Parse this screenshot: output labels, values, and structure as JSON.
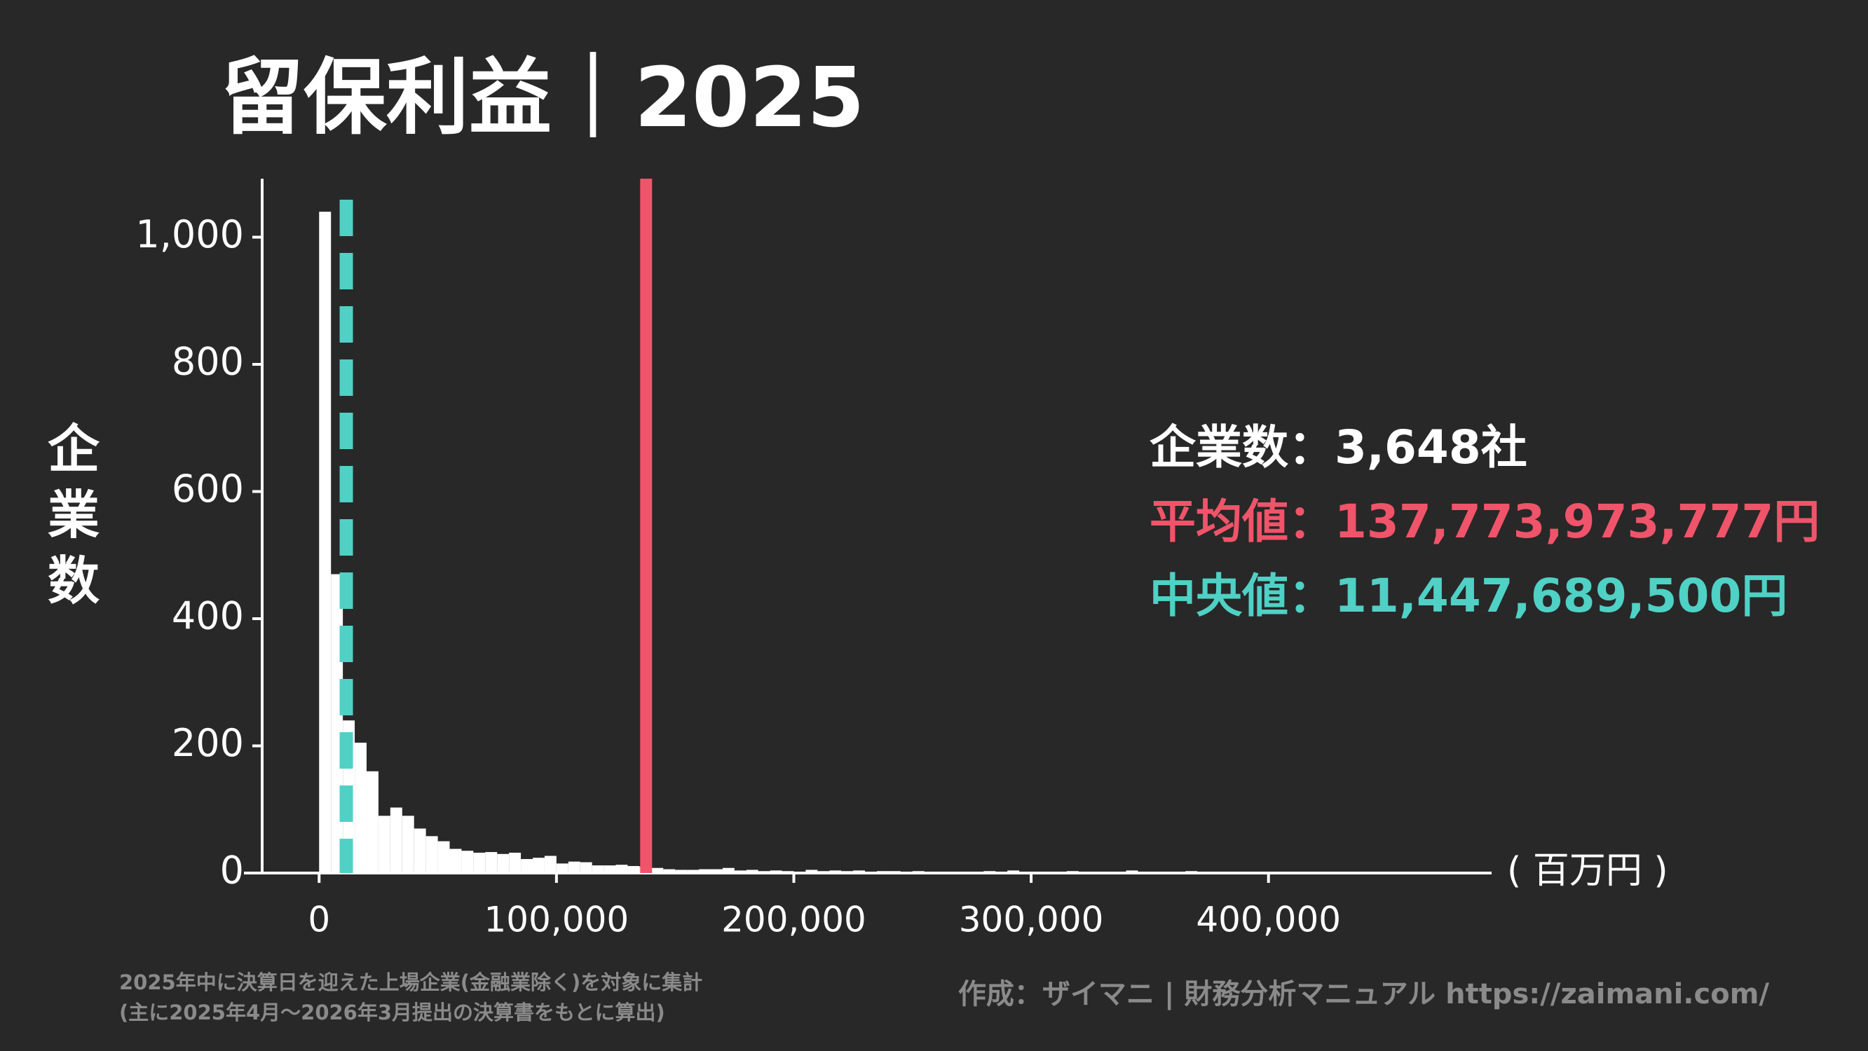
{
  "chart_data": {
    "type": "histogram",
    "title": "留保利益｜2025",
    "y_label": "企業数",
    "x_unit": "( 百万円 )",
    "bins": [
      0,
      5000,
      10000,
      15000,
      20000,
      25000,
      30000,
      35000,
      40000,
      45000,
      50000,
      55000,
      60000,
      65000,
      70000,
      75000,
      80000,
      85000,
      90000,
      95000,
      100000,
      105000,
      110000,
      115000,
      120000,
      125000,
      130000,
      135000,
      140000,
      145000,
      150000,
      155000,
      160000,
      165000,
      170000,
      175000,
      180000,
      185000,
      190000,
      195000,
      200000,
      205000,
      210000,
      215000,
      220000,
      225000,
      230000,
      235000,
      240000,
      245000,
      250000,
      255000,
      260000,
      265000,
      270000,
      275000,
      280000,
      285000,
      290000,
      295000,
      300000,
      305000,
      310000,
      315000,
      320000,
      325000,
      330000,
      335000,
      340000,
      345000,
      350000,
      355000,
      360000,
      365000,
      370000,
      375000,
      380000,
      385000,
      390000,
      395000,
      400000,
      405000,
      410000,
      415000,
      420000,
      425000,
      430000,
      435000,
      440000,
      445000,
      450000,
      455000,
      460000,
      465000,
      470000
    ],
    "values": [
      1040,
      470,
      240,
      205,
      160,
      90,
      103,
      90,
      70,
      58,
      50,
      38,
      35,
      32,
      33,
      30,
      32,
      22,
      24,
      27,
      15,
      18,
      17,
      12,
      12,
      13,
      11,
      10,
      8,
      6,
      5,
      5,
      6,
      6,
      8,
      4,
      5,
      3,
      4,
      3,
      2,
      5,
      3,
      4,
      3,
      4,
      2,
      3,
      3,
      2,
      3,
      2,
      2,
      2,
      2,
      1,
      3,
      2,
      4,
      1,
      1,
      2,
      2,
      3,
      1,
      2,
      1,
      2,
      4,
      1,
      1,
      1,
      0,
      3,
      1,
      1,
      1,
      1,
      0,
      1,
      1,
      1,
      2,
      1,
      0,
      1,
      1,
      0,
      1,
      2,
      0,
      1,
      0,
      1
    ],
    "color": "#ffffff",
    "xlim": [
      -24000,
      494000
    ],
    "ylim": [
      0,
      1092
    ],
    "xticks": [
      0,
      {
        "value": 100000,
        "label": "100,000"
      },
      {
        "value": 200000,
        "label": "200,000"
      },
      {
        "value": 300000,
        "label": "300,000"
      },
      {
        "value": 400000,
        "label": "400,000"
      }
    ],
    "yticks": [
      0,
      200,
      400,
      600,
      800,
      {
        "value": 1000,
        "label": "1,000"
      }
    ],
    "mean": {
      "value": 137773.973777,
      "color": "#f0546a"
    },
    "median": {
      "value": 11447.6895,
      "color": "#4fd1c5"
    },
    "stats": [
      {
        "text": "企業数：3,648社",
        "color": "#ffffff"
      },
      {
        "text": "平均値：137,773,973,777円",
        "color": "#f0546a"
      },
      {
        "text": "中央値：11,447,689,500円",
        "color": "#4fd1c5"
      }
    ],
    "notes": [
      "2025年中に決算日を迎えた上場企業(金融業除く)を対象に集計",
      "(主に2025年4月〜2026年3月提出の決算書をもとに算出)"
    ],
    "credit": "作成：ザイマニ | 財務分析マニュアル https://zaimani.com/"
  }
}
